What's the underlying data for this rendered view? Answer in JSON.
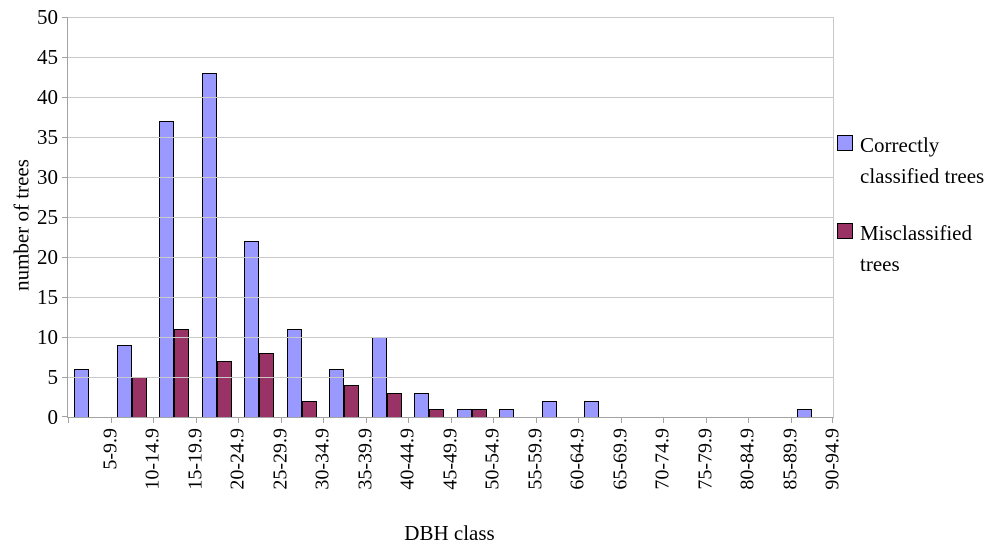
{
  "chart_data": {
    "type": "bar",
    "title": "",
    "xlabel": "DBH class",
    "ylabel": "number of trees",
    "ylim": [
      0,
      50
    ],
    "ytick_step": 5,
    "yticks": [
      0,
      5,
      10,
      15,
      20,
      25,
      30,
      35,
      40,
      45,
      50
    ],
    "grid": true,
    "legend_position": "right",
    "categories": [
      "5-9.9",
      "10-14.9",
      "15-19.9",
      "20-24.9",
      "25-29.9",
      "30-34.9",
      "35-39.9",
      "40-44.9",
      "45-49.9",
      "50-54.9",
      "55-59.9",
      "60-64.9",
      "65-69.9",
      "70-74.9",
      "75-79.9",
      "80-84.9",
      "85-89.9",
      "90-94.9"
    ],
    "series": [
      {
        "name": "Correctly classified trees",
        "color": "#9999FF",
        "values": [
          6,
          9,
          37,
          43,
          22,
          11,
          6,
          10,
          3,
          1,
          1,
          2,
          2,
          0,
          0,
          0,
          0,
          1
        ]
      },
      {
        "name": "Misclassified trees",
        "color": "#993366",
        "values": [
          0,
          5,
          11,
          7,
          8,
          2,
          4,
          3,
          1,
          1,
          0,
          0,
          0,
          0,
          0,
          0,
          0,
          0
        ]
      }
    ]
  },
  "colors": {
    "background": "#FFFFFF",
    "gridline": "#C9C9C9",
    "axis": "#A3A3A3",
    "bar_border": "#000000"
  }
}
